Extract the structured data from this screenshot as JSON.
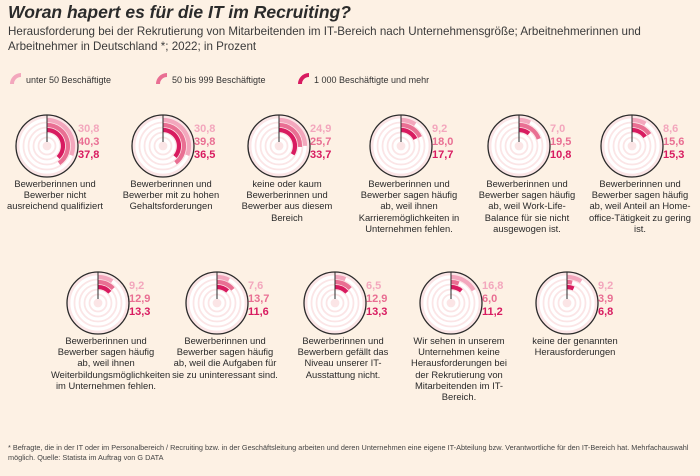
{
  "title": "Woran hapert es für die IT im Recruiting?",
  "subtitle": "Herausforderung bei der Rekrutierung von Mitarbeitenden im IT-Bereich nach Unternehmensgröße; Arbeitnehmerinnen und Arbeitnehmer in Deutschland *; 2022; in Prozent",
  "footnote": "* Befragte, die in der IT oder im Personalbereich / Recruiting bzw. in der Geschäftsleitung arbeiten und deren Unternehmen eine eigene IT-Abteilung bzw. Verantwortliche für den IT-Bereich hat. Mehrfachauswahl möglich. Quelle: Statista im Auftrag von G DATA",
  "colors": {
    "background": "#fdf1e4",
    "series_light": "#f3a7bd",
    "series_mid": "#e96f93",
    "series_dark": "#d81b60",
    "ring_track": "#ffffff",
    "outline": "#2b2b2b"
  },
  "chart_data": {
    "type": "radial-bar",
    "title": "Woran hapert es für die IT im Recruiting?",
    "unit": "Prozent",
    "max": 100,
    "series": [
      {
        "name": "unter 50 Beschäftigte",
        "color": "#f3a7bd"
      },
      {
        "name": "50 bis 999 Beschäftigte",
        "color": "#e96f93"
      },
      {
        "name": "1 000 Beschäftigte und mehr",
        "color": "#d81b60"
      }
    ],
    "categories": [
      {
        "label": "Bewerberinnen und Bewerber nicht ausreichend qualifiziert",
        "values": [
          30.8,
          40.3,
          37.8
        ],
        "value_labels": [
          "30,8",
          "40,3",
          "37,8"
        ]
      },
      {
        "label": "Bewerberinnen und Bewerber mit zu hohen Gehaltsforderungen",
        "values": [
          30.8,
          39.8,
          36.5
        ],
        "value_labels": [
          "30,8",
          "39,8",
          "36,5"
        ]
      },
      {
        "label": "keine oder kaum Bewerberinnen und Bewerber aus diesem Bereich",
        "values": [
          24.9,
          25.7,
          33.7
        ],
        "value_labels": [
          "24,9",
          "25,7",
          "33,7"
        ]
      },
      {
        "label": "Bewerberinnen und Bewerber sagen häufig ab, weil ihnen Karrieremöglichkeiten in Unternehmen fehlen.",
        "values": [
          9.2,
          18.0,
          17.7
        ],
        "value_labels": [
          "9,2",
          "18,0",
          "17,7"
        ]
      },
      {
        "label": "Bewerberinnen und Bewerber sagen häufig ab, weil Work-Life-Balance für sie nicht ausgewogen ist.",
        "values": [
          7.0,
          19.5,
          10.8
        ],
        "value_labels": [
          "7,0",
          "19,5",
          "10,8"
        ]
      },
      {
        "label": "Bewerberinnen und Bewerber sagen häufig ab, weil Anteil an Home-office-Tätigkeit zu gering ist.",
        "values": [
          8.6,
          15.6,
          15.3
        ],
        "value_labels": [
          "8,6",
          "15,6",
          "15,3"
        ]
      },
      {
        "label": "Bewerberinnen und Bewerber sagen häufig ab, weil ihnen Weiterbildungsmöglichkeiten im Unternehmen fehlen.",
        "values": [
          9.2,
          12.9,
          13.3
        ],
        "value_labels": [
          "9,2",
          "12,9",
          "13,3"
        ]
      },
      {
        "label": "Bewerberinnen und Bewerber sagen häufig ab, weil die Aufgaben für sie zu uninteressant sind.",
        "values": [
          7.6,
          13.7,
          11.6
        ],
        "value_labels": [
          "7,6",
          "13,7",
          "11,6"
        ]
      },
      {
        "label": "Bewerberinnen und Bewerbern gefällt das Niveau unserer IT-Ausstattung nicht.",
        "values": [
          6.5,
          12.9,
          13.3
        ],
        "value_labels": [
          "6,5",
          "12,9",
          "13,3"
        ]
      },
      {
        "label": "Wir sehen in unserem Unternehmen keine Herausforderungen bei der Rekrutierung von Mitarbeitenden im IT-Bereich.",
        "values": [
          16.8,
          6.0,
          11.2
        ],
        "value_labels": [
          "16,8",
          "6,0",
          "11,2"
        ]
      },
      {
        "label": "keine der genannten Herausforderungen",
        "values": [
          9.2,
          3.9,
          6.8
        ],
        "value_labels": [
          "9,2",
          "3,9",
          "6,8"
        ]
      }
    ]
  }
}
